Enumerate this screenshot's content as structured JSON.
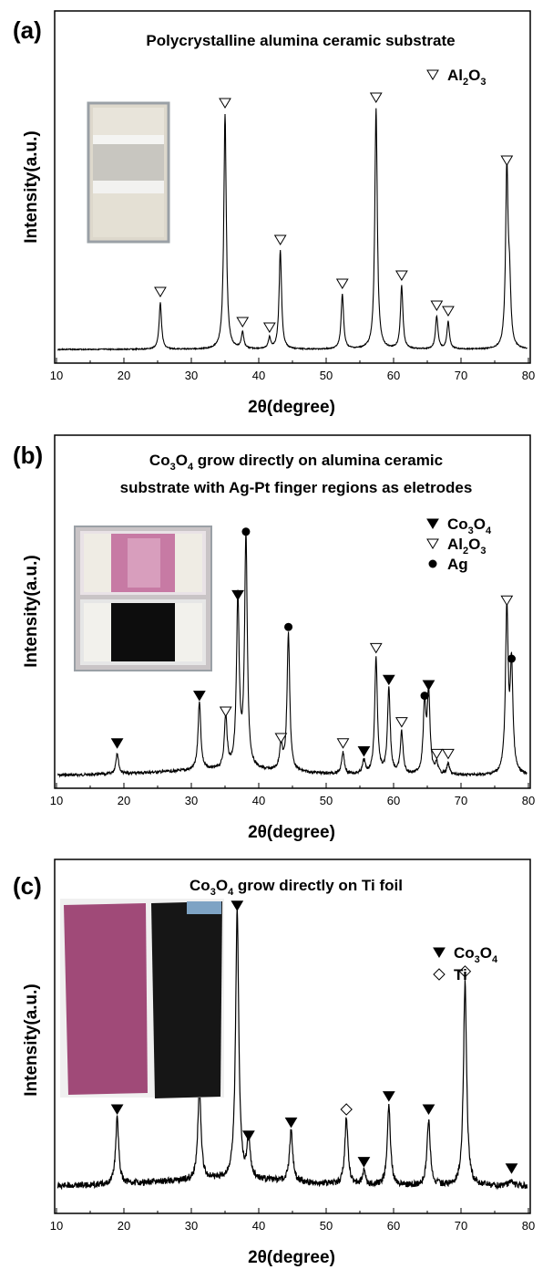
{
  "chart_data": [
    {
      "type": "line",
      "panel": "(a)",
      "title": "Polycrystalline alumina ceramic substrate",
      "xlabel": "2θ(degree)",
      "ylabel": "Intensity(a.u.)",
      "xlim": [
        10,
        80
      ],
      "xticks": [
        "10",
        "20",
        "30",
        "40",
        "50",
        "60",
        "70",
        "80"
      ],
      "legend": [
        {
          "marker": "open-triangle",
          "label": "Al",
          "sub1": "2",
          "mid": "O",
          "sub2": "3"
        }
      ],
      "series": [
        {
          "name": "Al2O3",
          "peaks": [
            {
              "x": 25.4,
              "h": 0.17,
              "marker": "open-triangle"
            },
            {
              "x": 35.0,
              "h": 0.86,
              "marker": "open-triangle"
            },
            {
              "x": 37.6,
              "h": 0.06,
              "marker": "open-triangle"
            },
            {
              "x": 41.6,
              "h": 0.04,
              "marker": "open-triangle"
            },
            {
              "x": 43.2,
              "h": 0.36,
              "marker": "open-triangle"
            },
            {
              "x": 52.4,
              "h": 0.2,
              "marker": "open-triangle"
            },
            {
              "x": 57.4,
              "h": 0.88,
              "marker": "open-triangle"
            },
            {
              "x": 61.2,
              "h": 0.23,
              "marker": "open-triangle"
            },
            {
              "x": 66.4,
              "h": 0.12,
              "marker": "open-triangle"
            },
            {
              "x": 68.1,
              "h": 0.1,
              "marker": "open-triangle"
            },
            {
              "x": 76.8,
              "h": 0.65,
              "marker": "open-triangle"
            },
            {
              "x": 77.2,
              "h": 0.2,
              "marker": null
            }
          ]
        }
      ]
    },
    {
      "type": "line",
      "panel": "(b)",
      "title_lines": [
        "Co3O4 grow directly on alumina ceramic",
        "substrate with Ag-Pt finger regions as eletrodes"
      ],
      "xlabel": "2θ(degree)",
      "ylabel": "Intensity(a.u.)",
      "xlim": [
        10,
        80
      ],
      "xticks": [
        "10",
        "20",
        "30",
        "40",
        "50",
        "60",
        "70",
        "80"
      ],
      "legend": [
        {
          "marker": "filled-triangle",
          "label": "Co",
          "sub1": "3",
          "mid": "O",
          "sub2": "4"
        },
        {
          "marker": "open-triangle",
          "label": "Al",
          "sub1": "2",
          "mid": "O",
          "sub2": "3"
        },
        {
          "marker": "filled-circle",
          "label": "Ag",
          "sub1": "",
          "mid": "",
          "sub2": ""
        }
      ],
      "series": [
        {
          "name": "Co3O4 on alumina",
          "peaks": [
            {
              "x": 19.0,
              "h": 0.08,
              "marker": "filled-triangle"
            },
            {
              "x": 31.2,
              "h": 0.26,
              "marker": "filled-triangle"
            },
            {
              "x": 35.1,
              "h": 0.2,
              "marker": "open-triangle"
            },
            {
              "x": 36.9,
              "h": 0.64,
              "marker": "filled-triangle"
            },
            {
              "x": 38.1,
              "h": 0.88,
              "marker": "filled-circle"
            },
            {
              "x": 43.3,
              "h": 0.1,
              "marker": "open-triangle"
            },
            {
              "x": 44.4,
              "h": 0.52,
              "marker": "filled-circle"
            },
            {
              "x": 52.5,
              "h": 0.08,
              "marker": "open-triangle"
            },
            {
              "x": 55.6,
              "h": 0.05,
              "marker": "filled-triangle"
            },
            {
              "x": 57.4,
              "h": 0.44,
              "marker": "open-triangle"
            },
            {
              "x": 59.3,
              "h": 0.32,
              "marker": "filled-triangle"
            },
            {
              "x": 61.2,
              "h": 0.16,
              "marker": "open-triangle"
            },
            {
              "x": 64.6,
              "h": 0.26,
              "marker": "filled-circle"
            },
            {
              "x": 65.2,
              "h": 0.3,
              "marker": "filled-triangle"
            },
            {
              "x": 66.4,
              "h": 0.04,
              "marker": "open-triangle"
            },
            {
              "x": 68.1,
              "h": 0.04,
              "marker": "open-triangle"
            },
            {
              "x": 76.8,
              "h": 0.62,
              "marker": "open-triangle"
            },
            {
              "x": 77.5,
              "h": 0.4,
              "marker": "filled-circle"
            }
          ]
        }
      ]
    },
    {
      "type": "line",
      "panel": "(c)",
      "title": "Co3O4 grow directly on Ti foil",
      "xlabel": "2θ(degree)",
      "ylabel": "Intensity(a.u.)",
      "xlim": [
        10,
        80
      ],
      "xticks": [
        "10",
        "20",
        "30",
        "40",
        "50",
        "60",
        "70",
        "80"
      ],
      "legend": [
        {
          "marker": "filled-triangle",
          "label": "Co",
          "sub1": "3",
          "mid": "O",
          "sub2": "4"
        },
        {
          "marker": "open-diamond",
          "label": "Ti",
          "sub1": "",
          "mid": "",
          "sub2": ""
        }
      ],
      "series": [
        {
          "name": "Co3O4 on Ti foil",
          "peaks": [
            {
              "x": 19.0,
              "h": 0.2,
              "marker": "filled-triangle"
            },
            {
              "x": 31.2,
              "h": 0.28,
              "marker": "filled-triangle"
            },
            {
              "x": 36.8,
              "h": 0.82,
              "marker": "filled-triangle"
            },
            {
              "x": 38.5,
              "h": 0.12,
              "marker": "filled-triangle"
            },
            {
              "x": 44.8,
              "h": 0.16,
              "marker": "filled-triangle"
            },
            {
              "x": 53.0,
              "h": 0.2,
              "marker": "open-diamond"
            },
            {
              "x": 55.6,
              "h": 0.04,
              "marker": "filled-triangle"
            },
            {
              "x": 59.3,
              "h": 0.24,
              "marker": "filled-triangle"
            },
            {
              "x": 65.2,
              "h": 0.2,
              "marker": "filled-triangle"
            },
            {
              "x": 70.6,
              "h": 0.62,
              "marker": "open-diamond"
            },
            {
              "x": 77.5,
              "h": 0.02,
              "marker": "filled-triangle"
            }
          ]
        }
      ]
    }
  ]
}
